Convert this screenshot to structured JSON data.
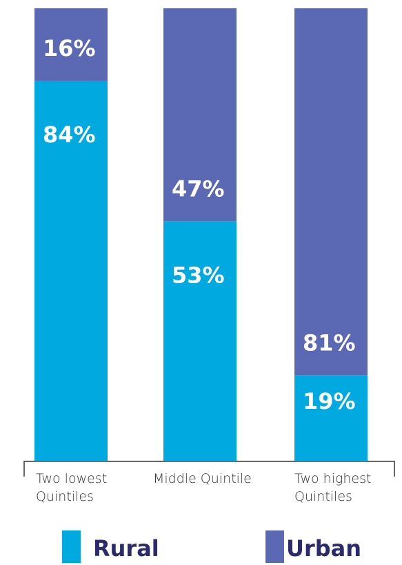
{
  "chart_data": {
    "type": "stacked_bar",
    "categories": [
      "Two lowest Quintiles",
      "Middle Quintile",
      "Two highest Quintiles"
    ],
    "series": [
      {
        "name": "Rural",
        "color": "#00a9e0",
        "values": [
          84,
          53,
          19
        ],
        "value_labels": [
          "84%",
          "53%",
          "19%"
        ]
      },
      {
        "name": "Urban",
        "color": "#5b69b4",
        "values": [
          16,
          47,
          81
        ],
        "value_labels": [
          "16%",
          "47%",
          "81%"
        ]
      }
    ]
  }
}
